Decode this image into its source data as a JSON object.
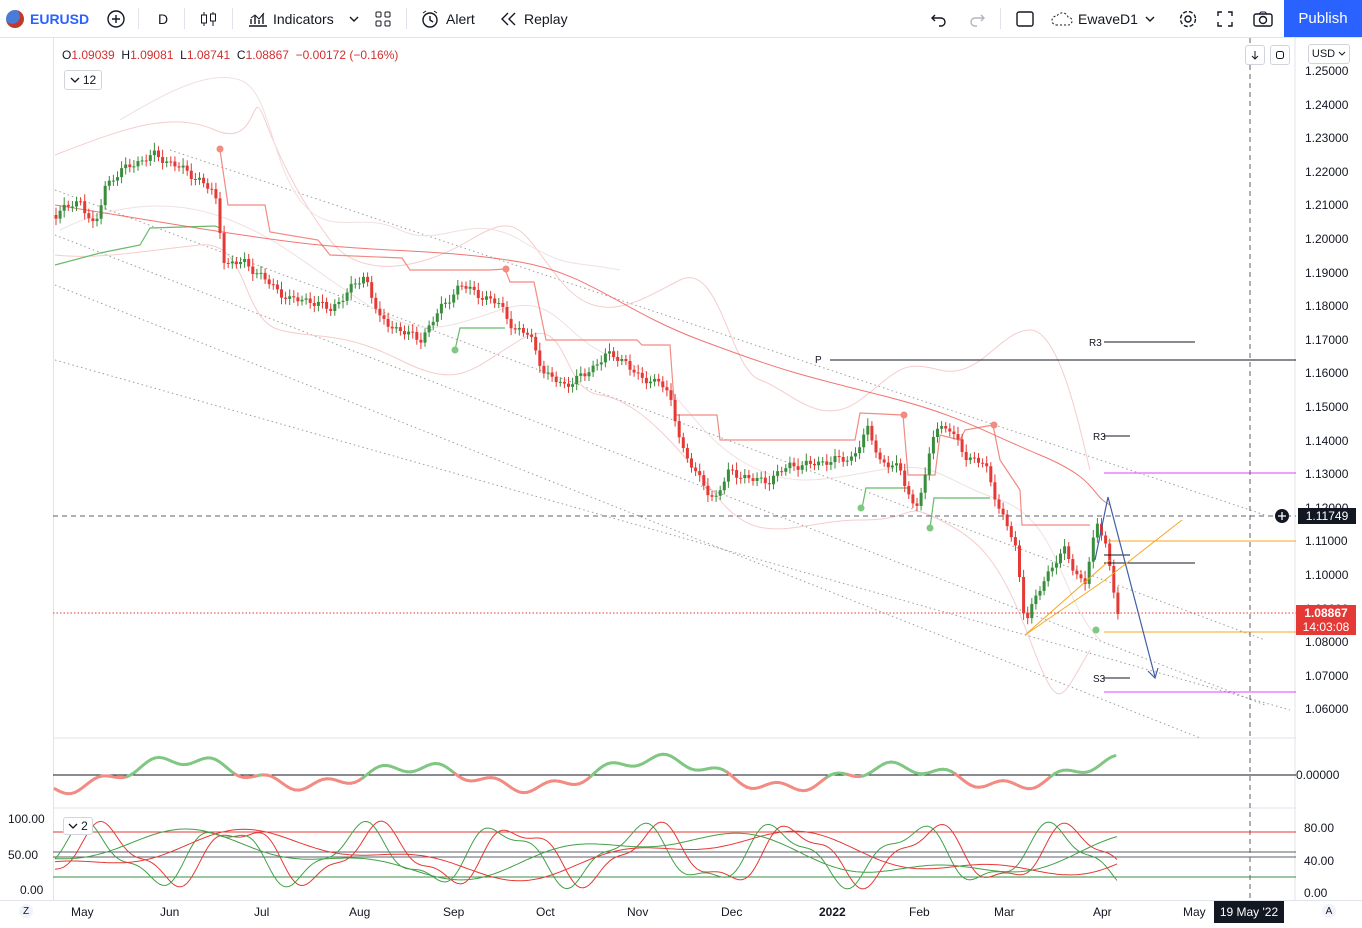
{
  "toolbar": {
    "symbol": "EURUSD",
    "interval": "D",
    "indicators_label": "Indicators",
    "alert_label": "Alert",
    "replay_label": "Replay",
    "layout_name": "EwaveD1",
    "publish_label": "Publish"
  },
  "legend": {
    "o_label": "O",
    "o": "1.09039",
    "h_label": "H",
    "h": "1.09081",
    "l_label": "L",
    "l": "1.08741",
    "c_label": "C",
    "c": "1.08867",
    "change": "−0.00172 (−0.16%)",
    "indicator_count": "12",
    "osc_count": "2"
  },
  "currency": "USD",
  "price_axis": [
    "1.25000",
    "1.24000",
    "1.23000",
    "1.22000",
    "1.21000",
    "1.20000",
    "1.19000",
    "1.18000",
    "1.17000",
    "1.16000",
    "1.15000",
    "1.14000",
    "1.13000",
    "1.12000",
    "1.11000",
    "1.10000",
    "1.09000",
    "1.08000",
    "1.07000",
    "1.06000"
  ],
  "crosshair_price": "1.11749",
  "last_price": "1.08867",
  "countdown": "14:03:08",
  "osc1_axis": [
    "0.00000"
  ],
  "osc2_axis_right": [
    "80.00",
    "40.00",
    "0.00"
  ],
  "osc2_axis_left": [
    "100.00",
    "50.00",
    "0.00"
  ],
  "pivot_labels": {
    "p": "P",
    "r3_a": "R3",
    "r3_b": "R3",
    "s3": "S3"
  },
  "time_axis": [
    "May",
    "Jun",
    "Jul",
    "Aug",
    "Sep",
    "Oct",
    "Nov",
    "Dec",
    "2022",
    "Feb",
    "Mar",
    "Apr",
    "May"
  ],
  "crosshair_date": "19 May '22",
  "corner_left": "Z",
  "corner_right": "A",
  "colors": {
    "up": "#388e3c",
    "down": "#e53935",
    "accent": "#2962ff",
    "band": "#f4a5a5",
    "orange": "#f5a623",
    "magenta": "#e040fb"
  }
}
